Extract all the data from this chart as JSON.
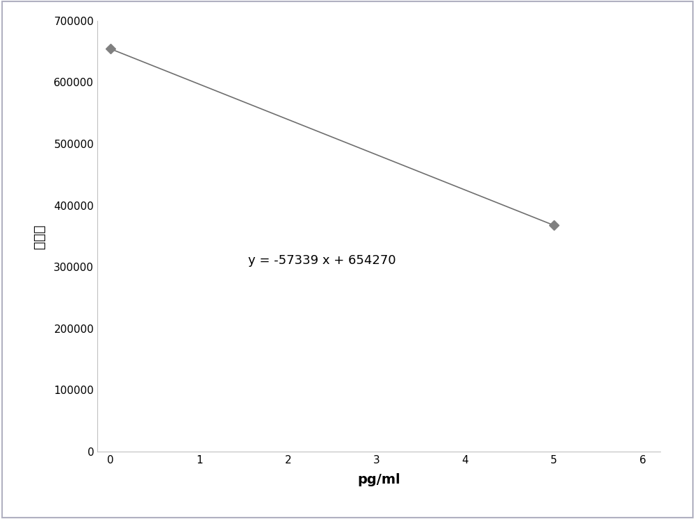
{
  "x_data": [
    0,
    5
  ],
  "y_data": [
    654270,
    367625
  ],
  "line_color": "#6e6e6e",
  "marker_color": "#808080",
  "marker_style": "D",
  "marker_size": 7,
  "equation_text": "y = -57339 x + 654270",
  "equation_x": 1.55,
  "equation_y": 310000,
  "equation_fontsize": 13,
  "xlabel": "pg/ml",
  "ylabel": "发光値",
  "xlabel_fontsize": 14,
  "ylabel_fontsize": 14,
  "xlim": [
    -0.15,
    6.2
  ],
  "ylim": [
    0,
    700000
  ],
  "xticks": [
    0,
    1,
    2,
    3,
    4,
    5,
    6
  ],
  "yticks": [
    0,
    100000,
    200000,
    300000,
    400000,
    500000,
    600000,
    700000
  ],
  "ytick_labels": [
    "0",
    "100000",
    "200000",
    "300000",
    "400000",
    "500000",
    "600000",
    "700000"
  ],
  "background_color": "#ffffff",
  "plot_bg_color": "#ffffff",
  "border_color": "#b0b0c0",
  "tick_fontsize": 11,
  "line_width": 1.2
}
